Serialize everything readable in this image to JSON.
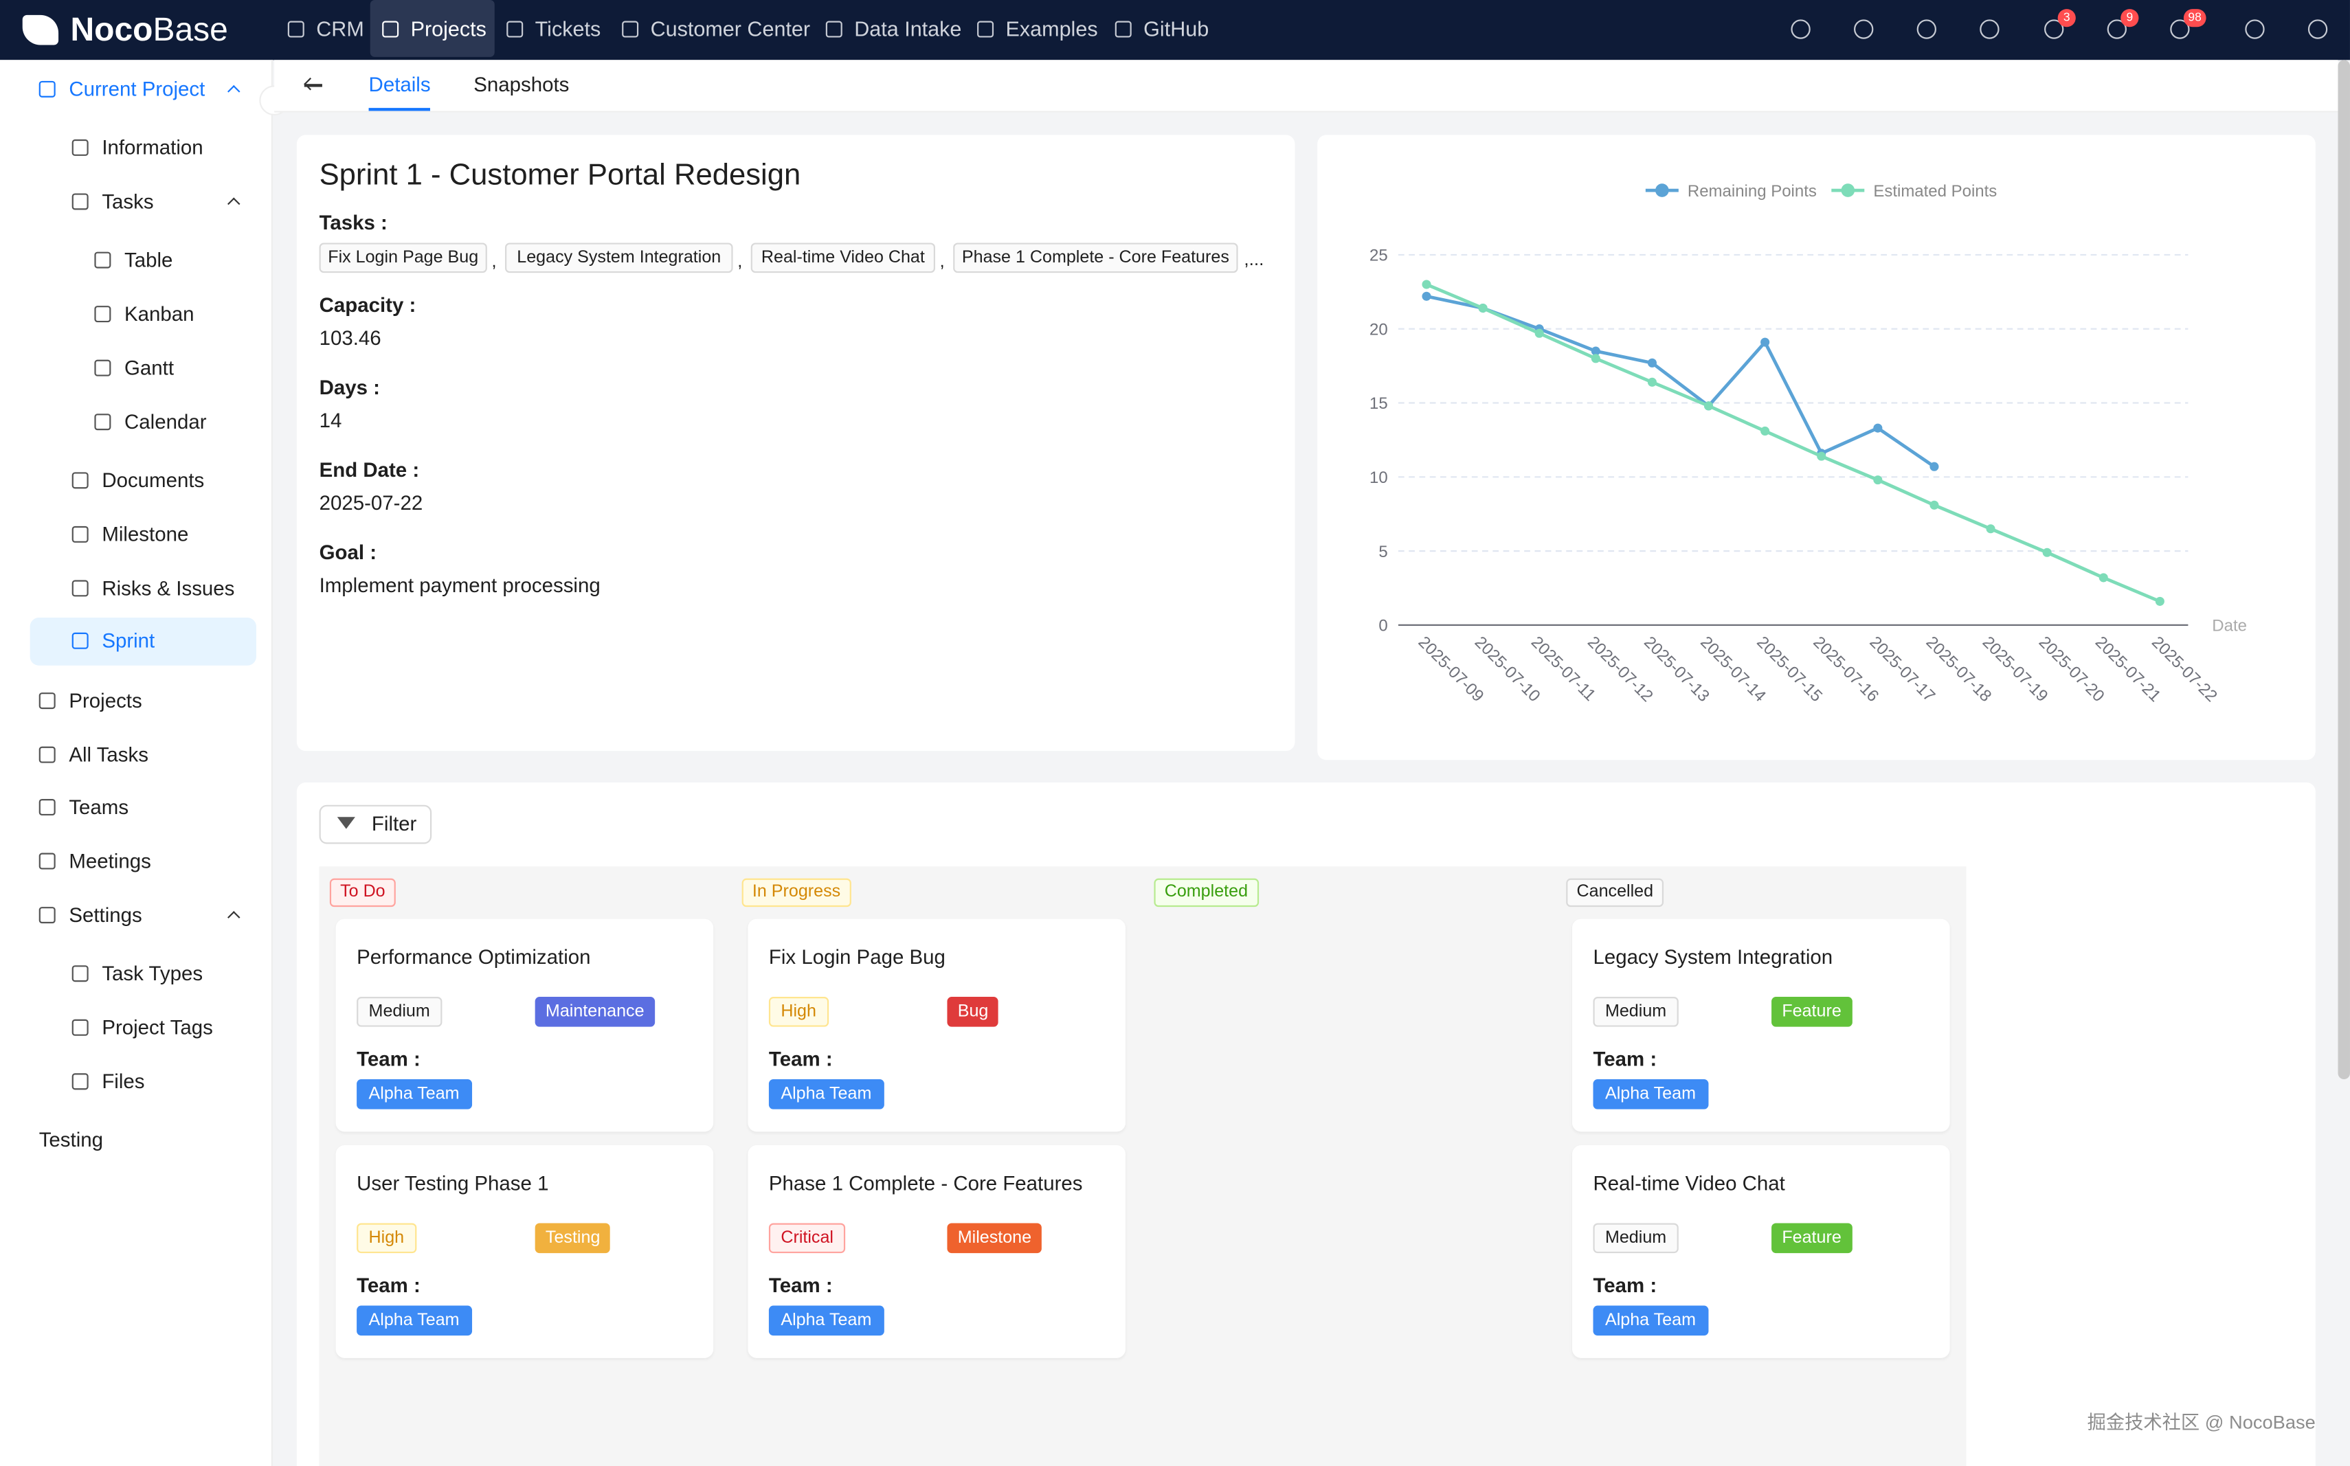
{
  "nav": {
    "brand": {
      "bold": "Noco",
      "light": "Base"
    },
    "items": [
      {
        "label": "CRM"
      },
      {
        "label": "Projects",
        "active": true
      },
      {
        "label": "Tickets"
      },
      {
        "label": "Customer Center"
      },
      {
        "label": "Data Intake"
      },
      {
        "label": "Examples"
      },
      {
        "label": "GitHub"
      }
    ],
    "badges": [
      "3",
      "9",
      "98"
    ]
  },
  "sidebar": [
    {
      "label": "Current Project",
      "open": true,
      "children": [
        {
          "label": "Information"
        },
        {
          "label": "Tasks",
          "open": true,
          "children": [
            {
              "label": "Table"
            },
            {
              "label": "Kanban"
            },
            {
              "label": "Gantt"
            },
            {
              "label": "Calendar"
            }
          ]
        },
        {
          "label": "Documents"
        },
        {
          "label": "Milestone"
        },
        {
          "label": "Risks & Issues"
        },
        {
          "label": "Sprint",
          "selected": true
        }
      ]
    },
    {
      "label": "Projects"
    },
    {
      "label": "All Tasks"
    },
    {
      "label": "Teams"
    },
    {
      "label": "Meetings"
    },
    {
      "label": "Settings",
      "open": true,
      "children": [
        {
          "label": "Task Types"
        },
        {
          "label": "Project Tags"
        },
        {
          "label": "Files"
        }
      ]
    },
    {
      "label": "Testing"
    }
  ],
  "tabs": [
    {
      "label": "Details",
      "active": true
    },
    {
      "label": "Snapshots"
    }
  ],
  "details": {
    "title": "Sprint 1 - Customer Portal Redesign",
    "tasks": {
      "label": "Tasks :",
      "tags": [
        "Fix Login Page Bug",
        "Legacy System Integration",
        "Real-time Video Chat",
        "Phase 1 Complete - Core Features"
      ],
      "separator": ",",
      "more": ",..."
    },
    "fields": [
      {
        "label": "Capacity :",
        "value": "103.46"
      },
      {
        "label": "Days :",
        "value": "14"
      },
      {
        "label": "End Date :",
        "value": "2025-07-22"
      },
      {
        "label": "Goal :",
        "value": "Implement payment processing"
      }
    ]
  },
  "chart_data": {
    "type": "line",
    "x": [
      "2025-07-09",
      "2025-07-10",
      "2025-07-11",
      "2025-07-12",
      "2025-07-13",
      "2025-07-14",
      "2025-07-15",
      "2025-07-16",
      "2025-07-17",
      "2025-07-18",
      "2025-07-19",
      "2025-07-20",
      "2025-07-21",
      "2025-07-22"
    ],
    "series": [
      {
        "name": "Remaining Points",
        "color": "#5ba3d6",
        "values": [
          22.2,
          21.4,
          20.0,
          18.5,
          17.7,
          14.8,
          19.1,
          11.6,
          13.3,
          10.7,
          null,
          null,
          null,
          null
        ]
      },
      {
        "name": "Estimated Points",
        "color": "#7ddcb8",
        "values": [
          23.0,
          21.4,
          19.7,
          18.0,
          16.4,
          14.8,
          13.1,
          11.4,
          9.8,
          8.1,
          6.5,
          4.9,
          3.2,
          1.6
        ]
      }
    ],
    "x_label": "Date",
    "ylim": [
      0,
      25
    ],
    "yticks": [
      0,
      5,
      10,
      15,
      20,
      25
    ],
    "grid": true,
    "legend": "top"
  },
  "board": {
    "filter": "Filter",
    "columns": [
      {
        "status": "To Do",
        "tone": "red",
        "cards": [
          {
            "title": "Performance Optimization",
            "priority": "Medium",
            "priority_tone": "default",
            "type": "Maintenance",
            "type_color": "#5b6ee1",
            "team_label": "Team :",
            "team": "Alpha Team"
          },
          {
            "title": "User Testing Phase 1",
            "priority": "High",
            "priority_tone": "gold",
            "type": "Testing",
            "type_color": "#f1b13e",
            "team_label": "Team :",
            "team": "Alpha Team"
          }
        ]
      },
      {
        "status": "In Progress",
        "tone": "gold",
        "cards": [
          {
            "title": "Fix Login Page Bug",
            "priority": "High",
            "priority_tone": "gold",
            "type": "Bug",
            "type_color": "#df3b3b",
            "team_label": "Team :",
            "team": "Alpha Team"
          },
          {
            "title": "Phase 1 Complete - Core Features",
            "priority": "Critical",
            "priority_tone": "red",
            "type": "Milestone",
            "type_color": "#ef622d",
            "team_label": "Team :",
            "team": "Alpha Team"
          }
        ]
      },
      {
        "status": "Completed",
        "tone": "green",
        "cards": []
      },
      {
        "status": "Cancelled",
        "tone": "default",
        "cards": [
          {
            "title": "Legacy System Integration",
            "priority": "Medium",
            "priority_tone": "default",
            "type": "Feature",
            "type_color": "#62c23a",
            "team_label": "Team :",
            "team": "Alpha Team"
          },
          {
            "title": "Real-time Video Chat",
            "priority": "Medium",
            "priority_tone": "default",
            "type": "Feature",
            "type_color": "#62c23a",
            "team_label": "Team :",
            "team": "Alpha Team"
          }
        ]
      }
    ],
    "team_color": "#3d8bf5"
  },
  "watermark": "掘金技术社区 @ NocoBase"
}
